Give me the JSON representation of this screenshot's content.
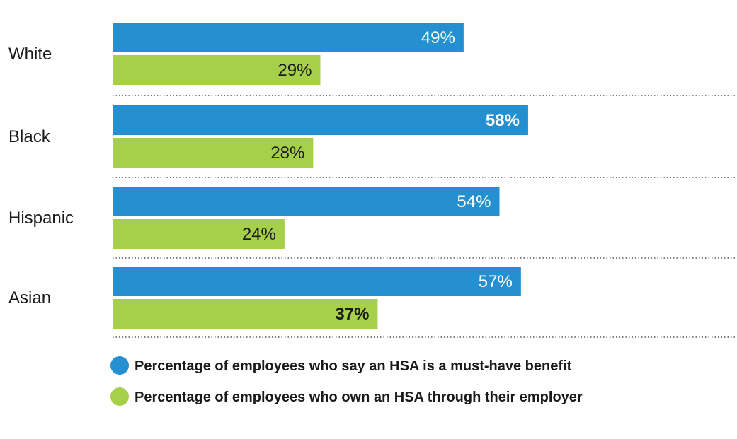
{
  "chart_data": {
    "type": "bar",
    "orientation": "horizontal",
    "categories": [
      "White",
      "Black",
      "Hispanic",
      "Asian"
    ],
    "series": [
      {
        "name": "Percentage of employees who say an HSA is a must-have benefit",
        "color": "#2490d1",
        "values": [
          49,
          58,
          54,
          57
        ],
        "labels": [
          "49%",
          "58%",
          "54%",
          "57%"
        ],
        "emphasized": [
          false,
          true,
          false,
          false
        ]
      },
      {
        "name": "Percentage of employees who own an HSA through their employer",
        "color": "#a6cf4a",
        "values": [
          29,
          28,
          24,
          37
        ],
        "labels": [
          "29%",
          "28%",
          "24%",
          "37%"
        ],
        "emphasized": [
          false,
          false,
          false,
          true
        ]
      }
    ],
    "xlim": [
      0,
      100
    ],
    "unit": "%",
    "legend_position": "bottom-left",
    "grid": false
  }
}
